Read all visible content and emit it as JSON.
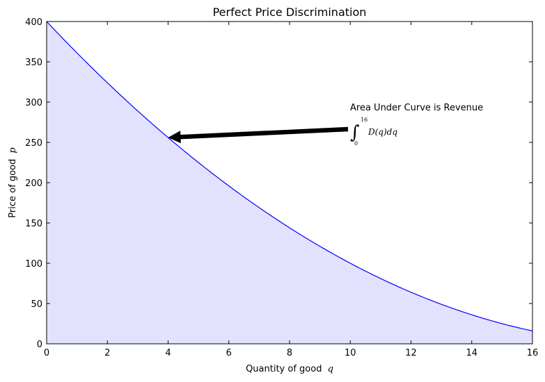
{
  "chart_data": {
    "type": "area",
    "title": "Perfect Price Discrimination",
    "xlabel_text": "Quantity of good",
    "xlabel_symbol": "q",
    "ylabel_text": "Price of good",
    "ylabel_symbol": "p",
    "xlim": [
      0,
      16
    ],
    "ylim": [
      0,
      400
    ],
    "x_ticks": [
      0,
      2,
      4,
      6,
      8,
      10,
      12,
      14,
      16
    ],
    "y_ticks": [
      0,
      50,
      100,
      150,
      200,
      250,
      300,
      350,
      400
    ],
    "series": [
      {
        "x": [
          0,
          1,
          2,
          3,
          4,
          5,
          6,
          7,
          8,
          9,
          10,
          11,
          12,
          13,
          14,
          15,
          16
        ],
        "y": [
          400,
          361,
          324,
          289,
          256,
          225,
          196,
          169,
          144,
          121,
          100,
          81,
          64,
          49,
          36,
          25,
          16
        ]
      }
    ],
    "line_color": "#0000ff",
    "fill_color": "#e2e2ff",
    "annotation": {
      "text": "Area Under Curve is Revenue",
      "integral_upper": "16",
      "integral_lower": "0",
      "integrand": "D(q)dq",
      "arrow_target": [
        4,
        256
      ],
      "text_anchor": [
        10,
        290
      ]
    },
    "grid": false,
    "legend": "none"
  }
}
